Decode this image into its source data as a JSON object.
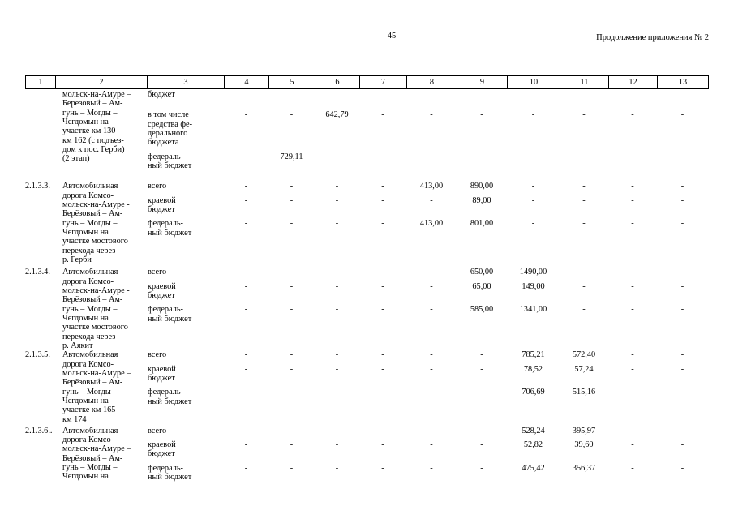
{
  "page": {
    "number": "45",
    "header_right": "Продолжение приложения № 2"
  },
  "table": {
    "column_numbers": [
      "1",
      "2",
      "3",
      "4",
      "5",
      "6",
      "7",
      "8",
      "9",
      "10",
      "11",
      "12",
      "13"
    ],
    "blocks": [
      {
        "num": "",
        "name": "мольск-на-Амуре –\nБерезовый – Ам-\nгунь – Могды –\nЧегдомын на\nучастке км 130 –\nкм 162 (с подъез-\nдом к пос. Герби)\n(2 этап)",
        "subrows": [
          {
            "label": "бюджет",
            "values": [
              "",
              "",
              "",
              "",
              "",
              "",
              "",
              "",
              "",
              ""
            ]
          },
          {
            "label": "в том числе\nсредства фе-\nдерального\nбюджета",
            "values": [
              "-",
              "-",
              "642,79",
              "-",
              "-",
              "-",
              "-",
              "-",
              "-",
              "-"
            ]
          },
          {
            "label": "федераль-\nный бюджет",
            "values": [
              "-",
              "729,11",
              "-",
              "-",
              "-",
              "-",
              "-",
              "-",
              "-",
              "-"
            ]
          }
        ]
      },
      {
        "num": "2.1.3.3.",
        "name": "Автомобильная\nдорога Комсо-\nмольск-на-Амуре -\nБерёзовый – Ам-\nгунь – Могды –\nЧегдомын на\nучастке мостового\nперехода через\nр. Герби",
        "subrows": [
          {
            "label": "всего",
            "values": [
              "-",
              "-",
              "-",
              "-",
              "413,00",
              "890,00",
              "-",
              "-",
              "-",
              "-"
            ]
          },
          {
            "label": "краевой\nбюджет",
            "values": [
              "-",
              "-",
              "-",
              "-",
              "-",
              "89,00",
              "-",
              "-",
              "-",
              "-"
            ]
          },
          {
            "label": "федераль-\nный бюджет",
            "values": [
              "-",
              "-",
              "-",
              "-",
              "413,00",
              "801,00",
              "-",
              "-",
              "-",
              "-"
            ]
          }
        ]
      },
      {
        "num": "2.1.3.4.",
        "name": "Автомобильная\nдорога Комсо-\nмольск-на-Амуре -\nБерёзовый – Ам-\nгунь – Могды –\nЧегдомын на\nучастке мостового\nперехода через\nр. Аякит",
        "subrows": [
          {
            "label": "всего",
            "values": [
              "-",
              "-",
              "-",
              "-",
              "-",
              "650,00",
              "1490,00",
              "-",
              "-",
              "-"
            ]
          },
          {
            "label": "краевой\nбюджет",
            "values": [
              "-",
              "-",
              "-",
              "-",
              "-",
              "65,00",
              "149,00",
              "-",
              "-",
              "-"
            ]
          },
          {
            "label": "федераль-\nный бюджет",
            "values": [
              "-",
              "-",
              "-",
              "-",
              "-",
              "585,00",
              "1341,00",
              "-",
              "-",
              "-"
            ]
          }
        ]
      },
      {
        "num": "2.1.3.5.",
        "name": "Автомобильная\nдорога Комсо-\nмольск-на-Амуре –\nБерёзовый – Ам-\nгунь – Могды –\nЧегдомын на\nучастке км 165 –\nкм 174",
        "subrows": [
          {
            "label": "всего",
            "values": [
              "-",
              "-",
              "-",
              "-",
              "-",
              "-",
              "785,21",
              "572,40",
              "-",
              "-"
            ]
          },
          {
            "label": "краевой\nбюджет",
            "values": [
              "-",
              "-",
              "-",
              "-",
              "-",
              "-",
              "78,52",
              "57,24",
              "-",
              "-"
            ]
          },
          {
            "label": "федераль-\nный бюджет",
            "values": [
              "-",
              "-",
              "-",
              "-",
              "-",
              "-",
              "706,69",
              "515,16",
              "-",
              "-"
            ]
          }
        ]
      },
      {
        "num": "2.1.3.6..",
        "name": "Автомобильная\nдорога Комсо-\nмольск-на-Амуре –\nБерёзовый – Ам-\nгунь – Могды –\nЧегдомын на",
        "subrows": [
          {
            "label": "всего",
            "values": [
              "-",
              "-",
              "-",
              "-",
              "-",
              "-",
              "528,24",
              "395,97",
              "-",
              "-"
            ]
          },
          {
            "label": "краевой\nбюджет",
            "values": [
              "-",
              "-",
              "-",
              "-",
              "-",
              "-",
              "52,82",
              "39,60",
              "-",
              "-"
            ]
          },
          {
            "label": "федераль-\nный бюджет",
            "values": [
              "-",
              "-",
              "-",
              "-",
              "-",
              "-",
              "475,42",
              "356,37",
              "-",
              "-"
            ]
          }
        ]
      }
    ]
  }
}
